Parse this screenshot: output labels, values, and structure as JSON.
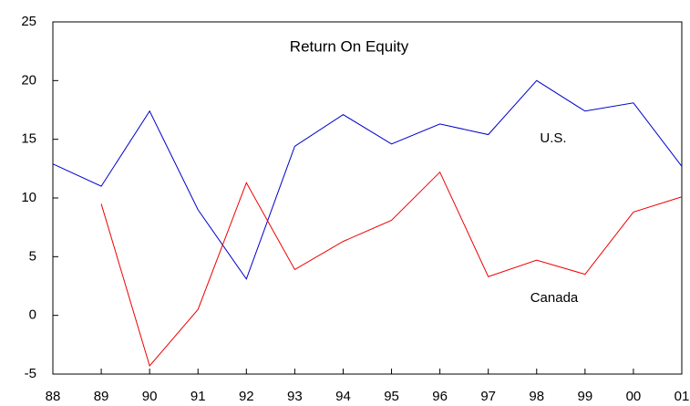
{
  "chart_data": {
    "type": "line",
    "title": "Return On Equity",
    "categories": [
      "88",
      "89",
      "90",
      "91",
      "92",
      "93",
      "94",
      "95",
      "96",
      "97",
      "98",
      "99",
      "00",
      "01"
    ],
    "series": [
      {
        "name": "U.S.",
        "color": "#0000cc",
        "values": [
          12.9,
          11.0,
          17.4,
          9.0,
          3.1,
          14.4,
          17.1,
          14.6,
          16.3,
          15.4,
          20.0,
          17.4,
          18.1,
          12.7
        ]
      },
      {
        "name": "Canada",
        "color": "#ee0000",
        "values": [
          null,
          9.5,
          -4.3,
          0.5,
          11.3,
          3.9,
          6.3,
          8.1,
          12.2,
          3.3,
          4.7,
          3.5,
          8.8,
          10.1
        ]
      }
    ],
    "ylim": [
      -5,
      25
    ],
    "yticks": [
      -5,
      0,
      5,
      10,
      15,
      20,
      25
    ],
    "grid": false
  }
}
